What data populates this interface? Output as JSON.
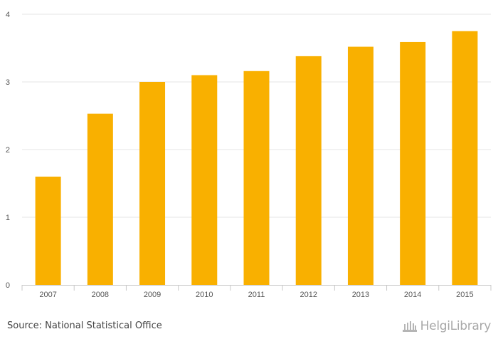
{
  "chart_data": {
    "type": "bar",
    "categories": [
      "2007",
      "2008",
      "2009",
      "2010",
      "2011",
      "2012",
      "2013",
      "2014",
      "2015"
    ],
    "values": [
      1.6,
      2.53,
      3.0,
      3.1,
      3.16,
      3.38,
      3.52,
      3.59,
      3.75
    ],
    "title": "",
    "xlabel": "",
    "ylabel": "",
    "ylim": [
      0,
      4
    ],
    "yticks": [
      "0",
      "1",
      "2",
      "3",
      "4"
    ],
    "bar_color": "#f9b000",
    "grid": true
  },
  "footer": {
    "source": "Source: National Statistical Office",
    "logo_text": "HelgiLibrary"
  }
}
